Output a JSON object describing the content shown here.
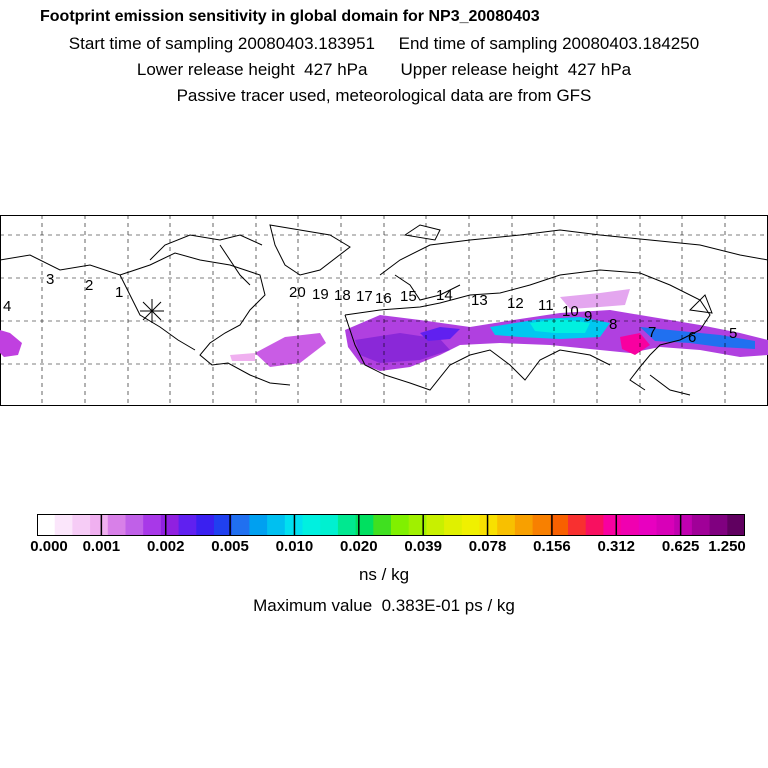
{
  "header": {
    "title": "Footprint emission sensitivity in global domain for NP3_20080403",
    "line1": "Start time of sampling 20080403.183951     End time of sampling 20080403.184250",
    "line2": "Lower release height  427 hPa       Upper release height  427 hPa",
    "line3": "Passive tracer used, meteorological data are from GFS"
  },
  "map": {
    "track_labels": [
      "4",
      "3",
      "2",
      "1",
      "20",
      "19",
      "18",
      "17",
      "16",
      "15",
      "14",
      "13",
      "12",
      "11",
      "10",
      "9",
      "8",
      "7",
      "6",
      "5"
    ],
    "release_marker": "asterisk"
  },
  "colorbar": {
    "colors": [
      "#ffffff",
      "#fbe6fb",
      "#f6ccf6",
      "#f0b0f0",
      "#d880e8",
      "#c060e8",
      "#a838e8",
      "#9020e0",
      "#6020f0",
      "#3a20f0",
      "#2040f0",
      "#2070f0",
      "#00a0f0",
      "#00c0f0",
      "#00e0f0",
      "#00f0e0",
      "#00f0d0",
      "#00e890",
      "#00e060",
      "#40e020",
      "#80f000",
      "#a0f000",
      "#c8f000",
      "#e0f000",
      "#f0f000",
      "#f8e000",
      "#f8c000",
      "#f8a000",
      "#f88000",
      "#f86000",
      "#f83030",
      "#f81060",
      "#f800a0",
      "#f000b0",
      "#e800c0",
      "#d800b8",
      "#c000b0",
      "#a00098",
      "#800080",
      "#600060"
    ],
    "tick_labels": [
      "0.000",
      "0.001",
      "0.002",
      "0.005",
      "0.010",
      "0.020",
      "0.039",
      "0.078",
      "0.156",
      "0.312",
      "0.625",
      "1.250"
    ],
    "units": "ns / kg"
  },
  "max_value": "Maximum value  0.383E-01 ps / kg"
}
